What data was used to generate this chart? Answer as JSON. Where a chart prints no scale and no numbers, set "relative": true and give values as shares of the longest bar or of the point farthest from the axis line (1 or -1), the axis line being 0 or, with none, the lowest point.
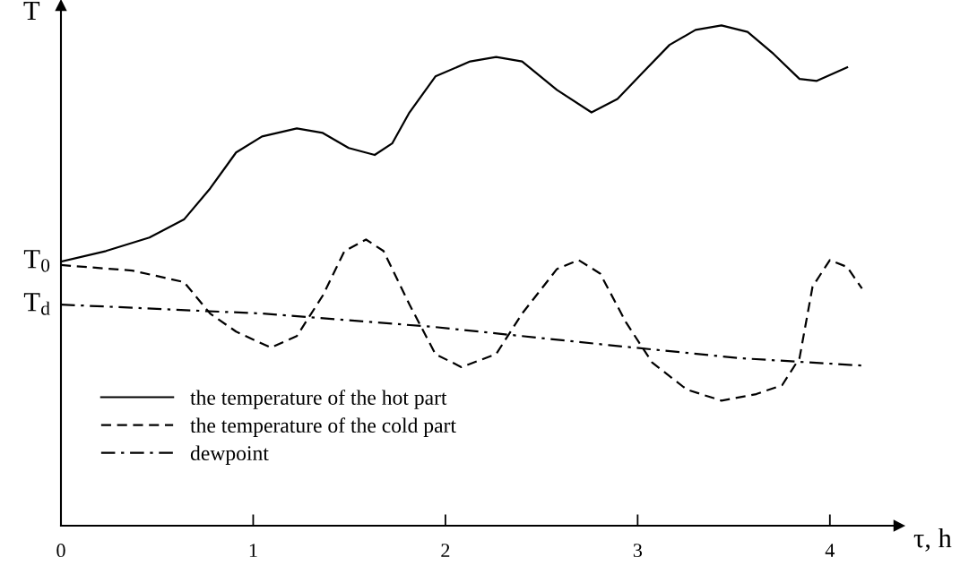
{
  "chart_data": {
    "type": "line",
    "relative": true,
    "xlabel": "τ, h",
    "ylabel": "T",
    "xlim": [
      0,
      4.36
    ],
    "xticks": [
      0,
      1,
      2,
      3,
      4
    ],
    "grid": false,
    "legend": "bottom left",
    "marker": "none",
    "annotations": [
      {
        "text": "T$_{0}$",
        "x": 0,
        "y": 0.528
      },
      {
        "text": "T$_{d}$",
        "x": 0,
        "y": 0.442
      }
    ],
    "series": [
      {
        "name": "the temperature of the hot part",
        "color": "#000000",
        "line_style": "solid",
        "x": [
          0,
          0.234,
          0.46,
          0.64,
          0.776,
          0.911,
          1.046,
          1.227,
          1.362,
          1.497,
          1.632,
          1.723,
          1.813,
          1.948,
          2.129,
          2.264,
          2.399,
          2.58,
          2.76,
          2.895,
          3.03,
          3.166,
          3.301,
          3.436,
          3.572,
          3.707,
          3.842,
          3.932,
          4.09
        ],
        "values": [
          0.528,
          0.549,
          0.576,
          0.612,
          0.674,
          0.746,
          0.778,
          0.794,
          0.785,
          0.755,
          0.741,
          0.764,
          0.826,
          0.898,
          0.928,
          0.937,
          0.928,
          0.871,
          0.826,
          0.853,
          0.907,
          0.961,
          0.991,
          1.0,
          0.987,
          0.943,
          0.893,
          0.889,
          0.916
        ]
      },
      {
        "name": "the temperature of the cold part",
        "color": "#000000",
        "line_style": "dashed",
        "x": [
          0,
          0.37,
          0.64,
          0.776,
          0.911,
          1.091,
          1.227,
          1.362,
          1.475,
          1.587,
          1.678,
          1.813,
          1.948,
          2.083,
          2.264,
          2.399,
          2.58,
          2.692,
          2.805,
          2.94,
          3.076,
          3.256,
          3.436,
          3.617,
          3.752,
          3.842,
          3.91,
          4.0,
          4.09,
          4.167
        ],
        "values": [
          0.521,
          0.51,
          0.487,
          0.424,
          0.388,
          0.356,
          0.379,
          0.46,
          0.549,
          0.572,
          0.549,
          0.442,
          0.343,
          0.317,
          0.343,
          0.424,
          0.513,
          0.531,
          0.504,
          0.406,
          0.326,
          0.272,
          0.25,
          0.263,
          0.281,
          0.335,
          0.478,
          0.531,
          0.517,
          0.474
        ]
      },
      {
        "name": "dewpoint",
        "color": "#000000",
        "line_style": "dashdot",
        "x": [
          0,
          1.046,
          1.948,
          2.85,
          3.526,
          4.167
        ],
        "values": [
          0.442,
          0.424,
          0.397,
          0.361,
          0.335,
          0.32
        ]
      }
    ]
  }
}
